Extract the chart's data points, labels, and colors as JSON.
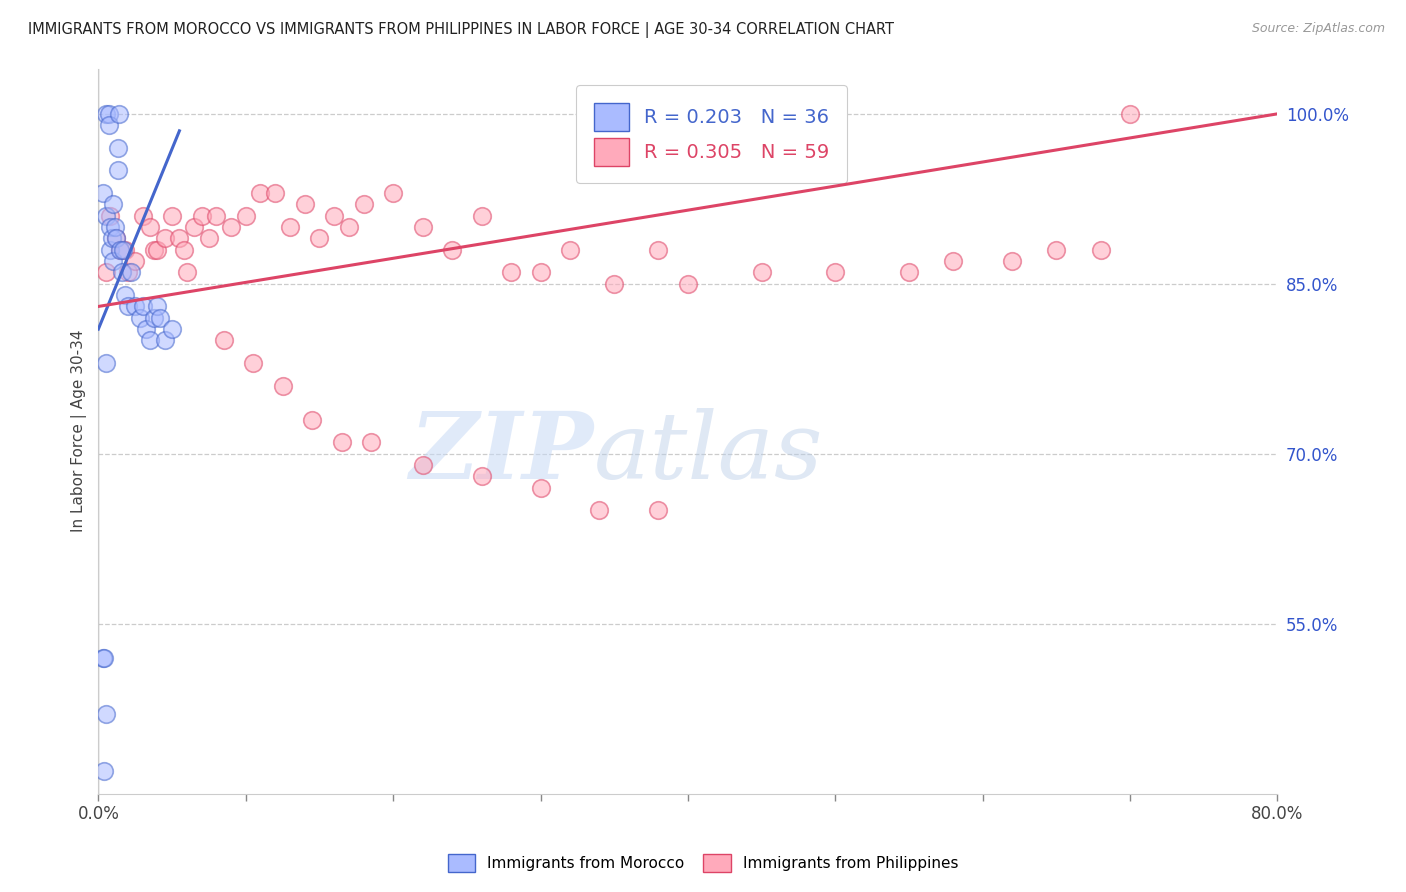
{
  "title": "IMMIGRANTS FROM MOROCCO VS IMMIGRANTS FROM PHILIPPINES IN LABOR FORCE | AGE 30-34 CORRELATION CHART",
  "source": "Source: ZipAtlas.com",
  "ylabel": "In Labor Force | Age 30-34",
  "xlim": [
    0.0,
    80.0
  ],
  "ylim": [
    40.0,
    104.0
  ],
  "yticks": [
    55.0,
    70.0,
    85.0,
    100.0
  ],
  "ytick_labels": [
    "55.0%",
    "70.0%",
    "85.0%",
    "100.0%"
  ],
  "xtick_positions": [
    0.0,
    10.0,
    20.0,
    30.0,
    40.0,
    50.0,
    60.0,
    70.0,
    80.0
  ],
  "xtick_labels": [
    "0.0%",
    "",
    "",
    "",
    "",
    "",
    "",
    "",
    "80.0%"
  ],
  "morocco_color": "#aabbff",
  "morocco_edge": "#4466cc",
  "philippines_color": "#ffaabb",
  "philippines_edge": "#dd4466",
  "morocco_R": "R = 0.203",
  "morocco_N": "N = 36",
  "philippines_R": "R = 0.305",
  "philippines_N": "N = 59",
  "watermark_zip": "ZIP",
  "watermark_atlas": "atlas",
  "morocco_x": [
    0.3,
    0.5,
    0.5,
    0.7,
    0.7,
    0.8,
    0.8,
    0.9,
    1.0,
    1.0,
    1.1,
    1.2,
    1.3,
    1.3,
    1.4,
    1.5,
    1.6,
    1.7,
    1.8,
    2.0,
    2.2,
    2.5,
    2.8,
    3.0,
    3.2,
    3.5,
    3.8,
    4.0,
    4.2,
    4.5,
    5.0,
    0.3,
    0.4,
    0.5,
    0.4,
    0.5
  ],
  "morocco_y": [
    93,
    91,
    100,
    100,
    99,
    88,
    90,
    89,
    87,
    92,
    90,
    89,
    95,
    97,
    100,
    88,
    86,
    88,
    84,
    83,
    86,
    83,
    82,
    83,
    81,
    80,
    82,
    83,
    82,
    80,
    81,
    52,
    52,
    78,
    42,
    47
  ],
  "philippines_x": [
    0.5,
    0.8,
    1.2,
    1.5,
    1.8,
    2.0,
    2.5,
    3.0,
    3.5,
    3.8,
    4.0,
    4.5,
    5.0,
    5.5,
    5.8,
    6.0,
    6.5,
    7.0,
    7.5,
    8.0,
    9.0,
    10.0,
    11.0,
    12.0,
    13.0,
    14.0,
    15.0,
    16.0,
    17.0,
    18.0,
    20.0,
    22.0,
    24.0,
    26.0,
    28.0,
    30.0,
    32.0,
    35.0,
    38.0,
    40.0,
    45.0,
    50.0,
    55.0,
    58.0,
    62.0,
    65.0,
    68.0,
    70.0,
    8.5,
    10.5,
    12.5,
    14.5,
    16.5,
    18.5,
    22.0,
    26.0,
    30.0,
    34.0,
    38.0
  ],
  "philippines_y": [
    86,
    91,
    89,
    88,
    88,
    86,
    87,
    91,
    90,
    88,
    88,
    89,
    91,
    89,
    88,
    86,
    90,
    91,
    89,
    91,
    90,
    91,
    93,
    93,
    90,
    92,
    89,
    91,
    90,
    92,
    93,
    90,
    88,
    91,
    86,
    86,
    88,
    85,
    88,
    85,
    86,
    86,
    86,
    87,
    87,
    88,
    88,
    100,
    80,
    78,
    76,
    73,
    71,
    71,
    69,
    68,
    67,
    65,
    65
  ],
  "morocco_line_x": [
    0.0,
    5.5
  ],
  "morocco_line_y": [
    81.0,
    98.5
  ],
  "philippines_line_x": [
    0.0,
    80.0
  ],
  "philippines_line_y": [
    83.0,
    100.0
  ]
}
